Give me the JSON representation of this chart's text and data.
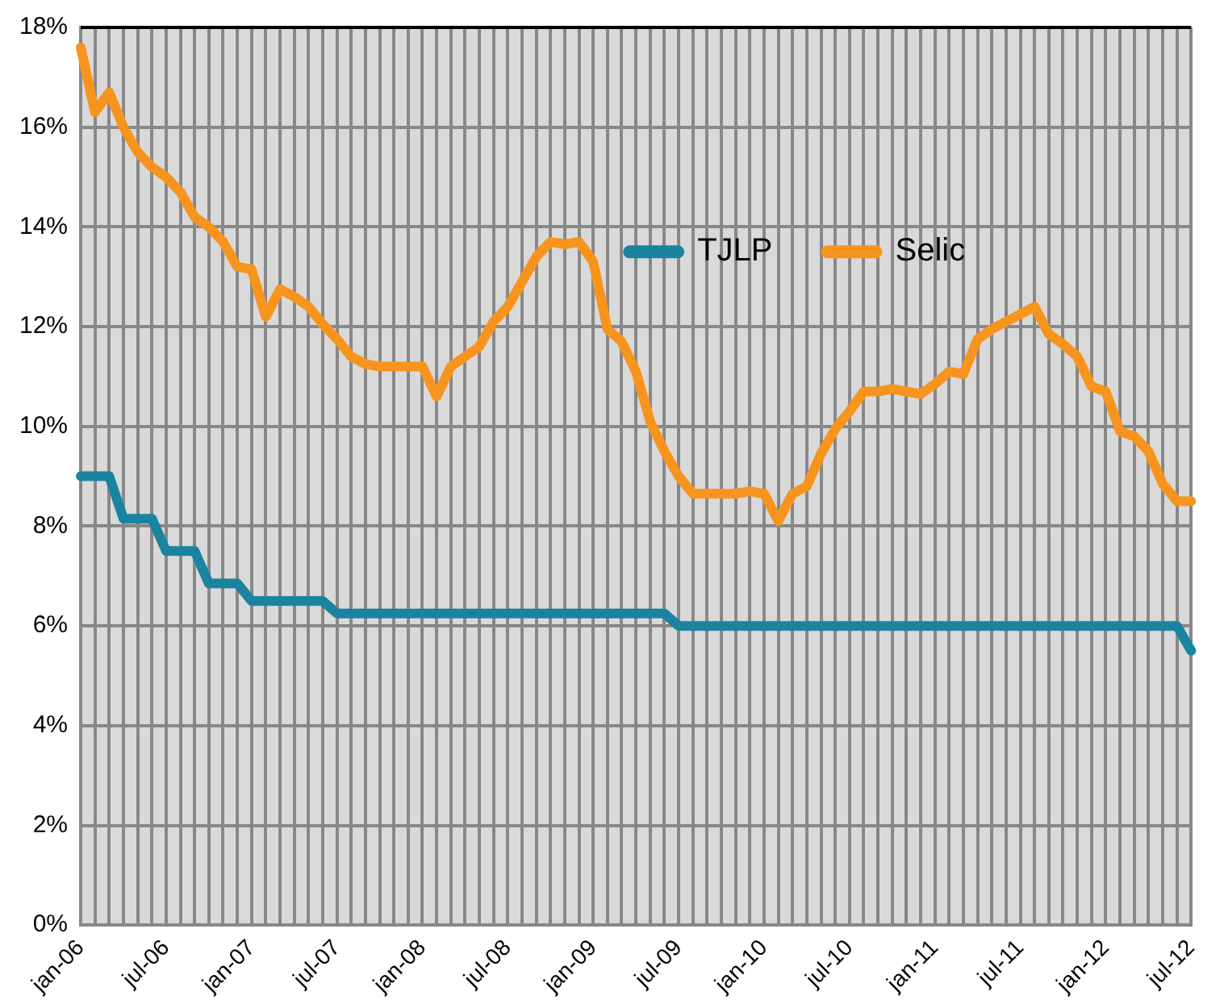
{
  "chart_data": {
    "type": "line",
    "categories": [
      "jan-06",
      null,
      null,
      null,
      null,
      null,
      "jul-06",
      null,
      null,
      null,
      null,
      null,
      "jan-07",
      null,
      null,
      null,
      null,
      null,
      "jul-07",
      null,
      null,
      null,
      null,
      null,
      "jan-08",
      null,
      null,
      null,
      null,
      null,
      "jul-08",
      null,
      null,
      null,
      null,
      null,
      "jan-09",
      null,
      null,
      null,
      null,
      null,
      "jul-09",
      null,
      null,
      null,
      null,
      null,
      "jan-10",
      null,
      null,
      null,
      null,
      null,
      "jul-10",
      null,
      null,
      null,
      null,
      null,
      "jan-11",
      null,
      null,
      null,
      null,
      null,
      "jul-11",
      null,
      null,
      null,
      null,
      null,
      "jan-12",
      null,
      null,
      null,
      null,
      null,
      "jul-12"
    ],
    "series": [
      {
        "name": "TJLP",
        "color": "#1a84a0",
        "values": [
          9.0,
          9.0,
          9.0,
          8.15,
          8.15,
          8.15,
          7.5,
          7.5,
          7.5,
          6.85,
          6.85,
          6.85,
          6.5,
          6.5,
          6.5,
          6.5,
          6.5,
          6.5,
          6.25,
          6.25,
          6.25,
          6.25,
          6.25,
          6.25,
          6.25,
          6.25,
          6.25,
          6.25,
          6.25,
          6.25,
          6.25,
          6.25,
          6.25,
          6.25,
          6.25,
          6.25,
          6.25,
          6.25,
          6.25,
          6.25,
          6.25,
          6.25,
          6.0,
          6.0,
          6.0,
          6.0,
          6.0,
          6.0,
          6.0,
          6.0,
          6.0,
          6.0,
          6.0,
          6.0,
          6.0,
          6.0,
          6.0,
          6.0,
          6.0,
          6.0,
          6.0,
          6.0,
          6.0,
          6.0,
          6.0,
          6.0,
          6.0,
          6.0,
          6.0,
          6.0,
          6.0,
          6.0,
          6.0,
          6.0,
          6.0,
          6.0,
          6.0,
          6.0,
          5.5
        ]
      },
      {
        "name": "Selic",
        "color": "#f7941d",
        "values": [
          17.6,
          16.3,
          16.7,
          16.0,
          15.5,
          15.2,
          15.0,
          14.7,
          14.2,
          14.0,
          13.7,
          13.2,
          13.15,
          12.2,
          12.75,
          12.6,
          12.4,
          12.05,
          11.75,
          11.4,
          11.25,
          11.2,
          11.2,
          11.2,
          11.2,
          10.6,
          11.2,
          11.4,
          11.6,
          12.1,
          12.4,
          12.9,
          13.4,
          13.7,
          13.65,
          13.7,
          13.3,
          11.95,
          11.7,
          11.1,
          10.1,
          9.5,
          9.0,
          8.65,
          8.65,
          8.65,
          8.65,
          8.7,
          8.65,
          8.1,
          8.65,
          8.8,
          9.45,
          9.95,
          10.3,
          10.7,
          10.7,
          10.75,
          10.7,
          10.65,
          10.85,
          11.1,
          11.05,
          11.75,
          11.95,
          12.1,
          12.25,
          12.4,
          11.85,
          11.65,
          11.4,
          10.8,
          10.7,
          9.9,
          9.8,
          9.5,
          8.85,
          8.5,
          8.5
        ]
      }
    ],
    "ylim": [
      0,
      18
    ],
    "yticks": [
      {
        "value": 0,
        "label": "0%"
      },
      {
        "value": 2,
        "label": "2%"
      },
      {
        "value": 4,
        "label": "4%"
      },
      {
        "value": 6,
        "label": "6%"
      },
      {
        "value": 8,
        "label": "8%"
      },
      {
        "value": 10,
        "label": "10%"
      },
      {
        "value": 12,
        "label": "12%"
      },
      {
        "value": 14,
        "label": "14%"
      },
      {
        "value": 16,
        "label": "16%"
      },
      {
        "value": 18,
        "label": "18%"
      }
    ],
    "grid": true,
    "legend": "top right",
    "marker": "none",
    "line_style": "solid"
  }
}
